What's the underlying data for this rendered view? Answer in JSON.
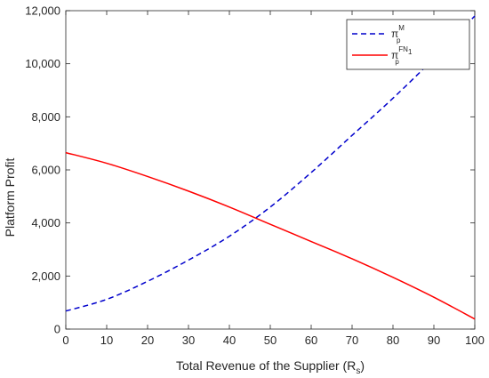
{
  "chart_data": {
    "type": "line",
    "xlabel": "Total Revenue of the Supplier (R",
    "xlabel_sub": "s",
    "xlabel_close": ")",
    "ylabel": "Platform Profit",
    "xlim": [
      0,
      100
    ],
    "ylim": [
      0,
      12000
    ],
    "xticks": [
      0,
      10,
      20,
      30,
      40,
      50,
      60,
      70,
      80,
      90,
      100
    ],
    "yticks": [
      0,
      2000,
      4000,
      6000,
      8000,
      10000,
      12000
    ],
    "xtick_labels": [
      "0",
      "10",
      "20",
      "30",
      "40",
      "50",
      "60",
      "70",
      "80",
      "90",
      "100"
    ],
    "ytick_labels": [
      "0",
      "2,000",
      "4,000",
      "6,000",
      "8,000",
      "10,000",
      "12,000"
    ],
    "grid": false,
    "legend_position": "top-right",
    "series": [
      {
        "legend_symbol": "π",
        "legend_sup": "M",
        "legend_sub": "p",
        "color": "#0000cc",
        "dash": "dashed",
        "x": [
          0,
          10,
          20,
          30,
          40,
          50,
          60,
          70,
          80,
          90,
          100
        ],
        "y": [
          680,
          1120,
          1800,
          2600,
          3500,
          4600,
          5900,
          7300,
          8700,
          10200,
          11800
        ]
      },
      {
        "legend_symbol": "π",
        "legend_sup": "FN",
        "legend_sup_sub": "1",
        "legend_sub": "p",
        "color": "#ff0000",
        "dash": "solid",
        "x": [
          0,
          10,
          20,
          30,
          40,
          50,
          60,
          70,
          80,
          90,
          100
        ],
        "y": [
          6650,
          6250,
          5750,
          5200,
          4600,
          3950,
          3300,
          2650,
          1950,
          1200,
          380
        ]
      }
    ]
  }
}
